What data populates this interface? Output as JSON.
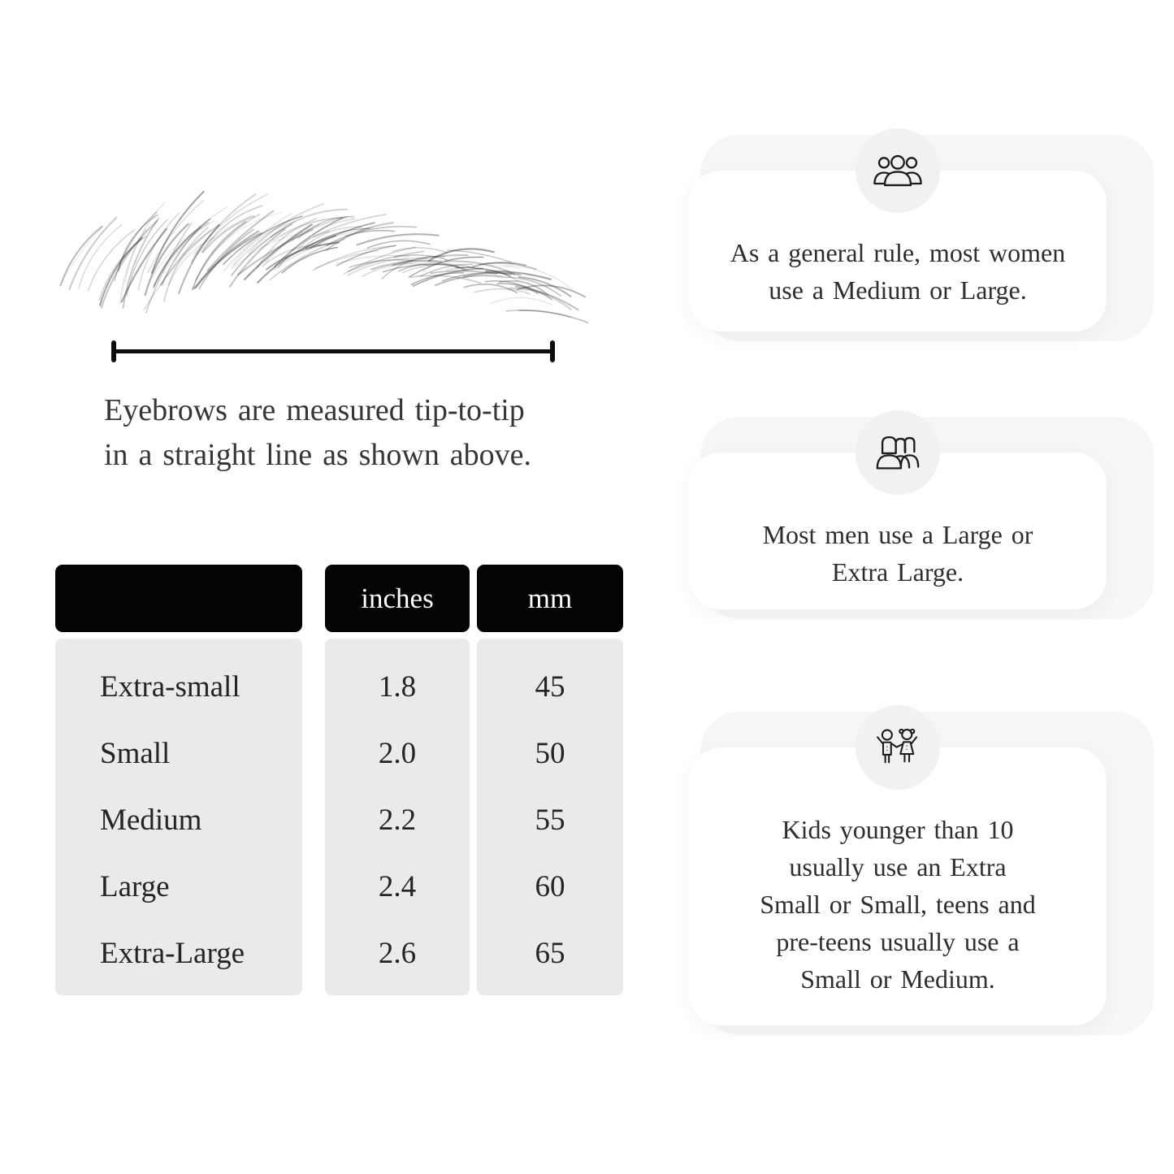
{
  "colors": {
    "background": "#ffffff",
    "table_header_bg": "#040404",
    "table_header_text": "#ffffff",
    "table_body_bg": "#eaeaea",
    "card_bg": "#ffffff",
    "card_backdrop": "#f6f6f6",
    "icon_circle_bg": "#f1f1f1",
    "icon_stroke": "#1c1c1c",
    "text_primary": "#2b2b2b"
  },
  "diagram": {
    "caption": "Eyebrows are measured tip-to-tip\nin a straight line as shown above."
  },
  "size_table": {
    "columns": [
      "",
      "inches",
      "mm"
    ],
    "rows": [
      {
        "label": "Extra-small",
        "inches": "1.8",
        "mm": "45"
      },
      {
        "label": "Small",
        "inches": "2.0",
        "mm": "50"
      },
      {
        "label": "Medium",
        "inches": "2.2",
        "mm": "55"
      },
      {
        "label": "Large",
        "inches": "2.4",
        "mm": "60"
      },
      {
        "label": "Extra-Large",
        "inches": "2.6",
        "mm": "65"
      }
    ]
  },
  "info_cards": [
    {
      "icon": "women-group-icon",
      "text": "As a general rule, most women\nuse a Medium or Large."
    },
    {
      "icon": "men-group-icon",
      "text": "Most men use a Large or\nExtra Large."
    },
    {
      "icon": "children-icon",
      "text": "Kids younger than 10\nusually use an Extra\nSmall or Small, teens and\npre-teens usually use a\nSmall or Medium."
    }
  ]
}
